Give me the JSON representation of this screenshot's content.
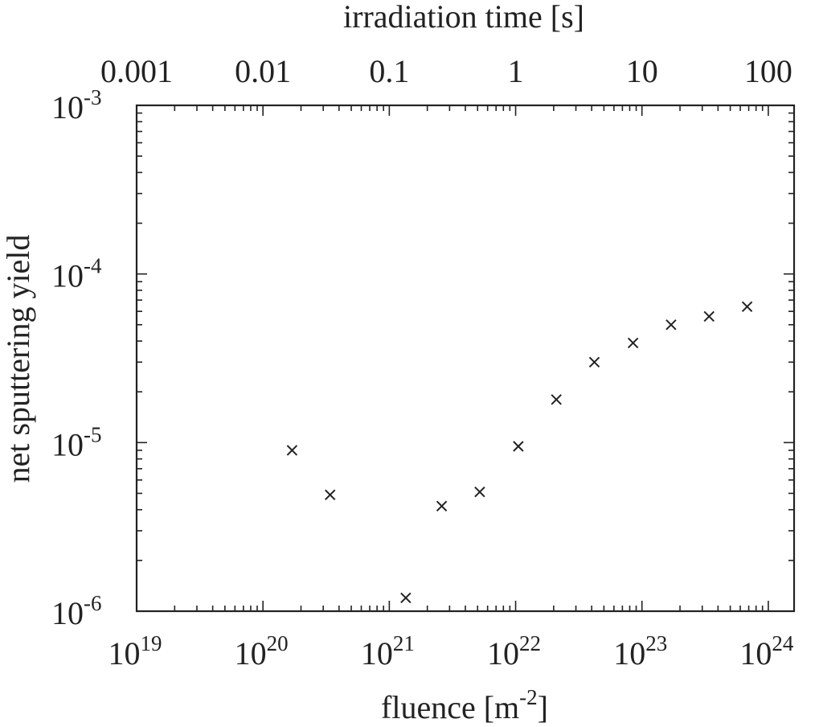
{
  "chart_data": {
    "type": "scatter",
    "title": "",
    "xlabel": "fluence [m",
    "xlabel_sup": "-2",
    "xlabel_suffix": "]",
    "x2label": "irradiation time [s]",
    "ylabel": "net sputtering yield",
    "x_scale": "log",
    "y_scale": "log",
    "x2_scale": "log",
    "xlim": [
      1e+19,
      1.6e+24
    ],
    "x2lim": [
      0.001,
      160
    ],
    "ylim": [
      1e-06,
      0.001
    ],
    "x_ticks": [
      {
        "value": 1e+19,
        "base": "10",
        "exp": "19"
      },
      {
        "value": 1e+20,
        "base": "10",
        "exp": "20"
      },
      {
        "value": 1e+21,
        "base": "10",
        "exp": "21"
      },
      {
        "value": 1e+22,
        "base": "10",
        "exp": "22"
      },
      {
        "value": 1e+23,
        "base": "10",
        "exp": "23"
      },
      {
        "value": 1e+24,
        "base": "10",
        "exp": "24"
      }
    ],
    "y_ticks": [
      {
        "value": 1e-06,
        "base": "10",
        "exp": "-6"
      },
      {
        "value": 1e-05,
        "base": "10",
        "exp": "-5"
      },
      {
        "value": 0.0001,
        "base": "10",
        "exp": "-4"
      },
      {
        "value": 0.001,
        "base": "10",
        "exp": "-3"
      }
    ],
    "x2_ticks": [
      {
        "value": 0.001,
        "label": "0.001"
      },
      {
        "value": 0.01,
        "label": "0.01"
      },
      {
        "value": 0.1,
        "label": "0.1"
      },
      {
        "value": 1,
        "label": "1"
      },
      {
        "value": 10,
        "label": "10"
      },
      {
        "value": 100,
        "label": "100"
      }
    ],
    "marker": "x",
    "marker_color": "#222222",
    "grid": false,
    "legend": "none",
    "points": [
      {
        "x": 1.7e+20,
        "y": 9e-06
      },
      {
        "x": 3.4e+20,
        "y": 4.9e-06
      },
      {
        "x": 1.35e+21,
        "y": 1.2e-06
      },
      {
        "x": 2.6e+21,
        "y": 4.2e-06
      },
      {
        "x": 5.2e+21,
        "y": 5.1e-06
      },
      {
        "x": 1.05e+22,
        "y": 9.5e-06
      },
      {
        "x": 2.1e+22,
        "y": 1.8e-05
      },
      {
        "x": 4.2e+22,
        "y": 3e-05
      },
      {
        "x": 8.5e+22,
        "y": 3.9e-05
      },
      {
        "x": 1.7e+23,
        "y": 5e-05
      },
      {
        "x": 3.4e+23,
        "y": 5.6e-05
      },
      {
        "x": 6.8e+23,
        "y": 6.4e-05
      }
    ]
  }
}
